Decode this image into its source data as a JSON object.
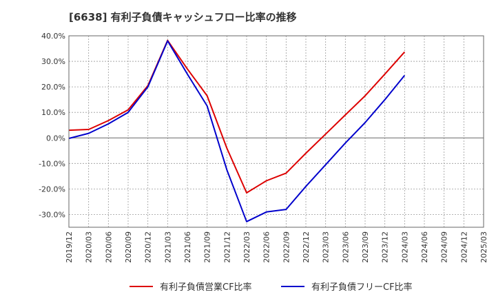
{
  "title": "[6638]  有利子負債キャッシュフロー比率の推移",
  "colors": {
    "series1": "#dd0000",
    "series2": "#0000cc",
    "grid": "#999999",
    "zero": "#666666"
  },
  "chart_data": {
    "type": "line",
    "title": "[6638]  有利子負債キャッシュフロー比率の推移",
    "x": [
      "2019/12",
      "2020/03",
      "2020/06",
      "2020/09",
      "2020/12",
      "2021/03",
      "2021/06",
      "2021/09",
      "2021/12",
      "2022/03",
      "2022/06",
      "2022/09",
      "2022/12",
      "2023/03",
      "2023/06",
      "2023/09",
      "2023/12",
      "2024/03",
      "2024/06",
      "2024/09",
      "2024/12",
      "2025/03"
    ],
    "ylim": [
      -35,
      40
    ],
    "yticks": [
      40,
      30,
      20,
      10,
      0,
      -10,
      -20,
      -30
    ],
    "ytick_labels": [
      "40.0%",
      "30.0%",
      "20.0%",
      "10.0%",
      "0.0%",
      "-10.0%",
      "-20.0%",
      "-30.0%"
    ],
    "grid": true,
    "legend_position": "bottom",
    "series": [
      {
        "name": "有利子負債営業CF比率",
        "values": [
          3.0,
          3.3,
          6.8,
          11.0,
          20.5,
          38.2,
          27.0,
          16.5,
          -4.0,
          -21.5,
          -16.8,
          -13.8,
          -6.0,
          1.5,
          9.0,
          16.5,
          25.0,
          33.7,
          null,
          null,
          null,
          null
        ]
      },
      {
        "name": "有利子負債フリーCF比率",
        "values": [
          -0.2,
          1.8,
          5.5,
          10.0,
          20.0,
          38.0,
          25.0,
          12.5,
          -12.5,
          -32.8,
          -29.0,
          -28.0,
          -19.0,
          -10.5,
          -2.0,
          6.0,
          15.0,
          24.5,
          null,
          null,
          null,
          null
        ]
      }
    ]
  }
}
